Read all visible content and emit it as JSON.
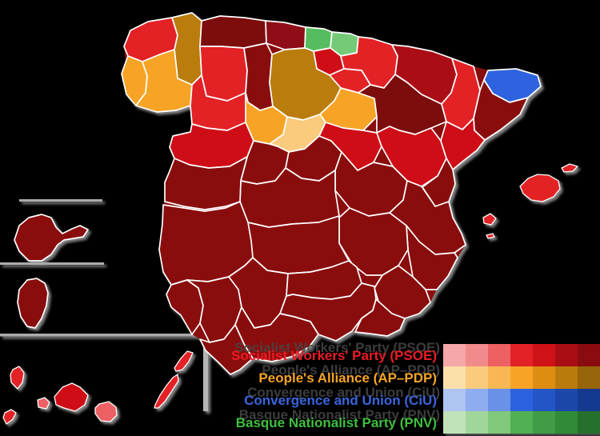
{
  "background_color": "#000000",
  "map": {
    "description": "Spanish general election results by province",
    "border_color": "#ffffff",
    "inset_line_color": "#ababab",
    "provinces": [
      {
        "id": "a-coruna",
        "name": "A Coruña",
        "party": "PSOE",
        "color": "#e32227"
      },
      {
        "id": "lugo",
        "name": "Lugo",
        "party": "AP–PDP",
        "color": "#ba7b0d"
      },
      {
        "id": "pontevedra",
        "name": "Pontevedra",
        "party": "AP–PDP",
        "color": "#f7a426"
      },
      {
        "id": "ourense",
        "name": "Ourense",
        "party": "AP–PDP",
        "color": "#f7a426"
      },
      {
        "id": "asturias",
        "name": "Asturias",
        "party": "PSOE",
        "color": "#7d0b10"
      },
      {
        "id": "cantabria",
        "name": "Cantabria",
        "party": "PSOE",
        "color": "#8f0e13"
      },
      {
        "id": "biscay",
        "name": "Biscay",
        "party": "PNV",
        "color": "#55bd5f"
      },
      {
        "id": "gipuzkoa",
        "name": "Gipuzkoa",
        "party": "PNV",
        "color": "#74ca77"
      },
      {
        "id": "alava",
        "name": "Álava",
        "party": "PSOE",
        "color": "#cf1118"
      },
      {
        "id": "navarre",
        "name": "Navarre",
        "party": "PSOE",
        "color": "#e32227"
      },
      {
        "id": "la-rioja",
        "name": "La Rioja",
        "party": "PSOE",
        "color": "#e32227"
      },
      {
        "id": "leon",
        "name": "León",
        "party": "PSOE",
        "color": "#e32227"
      },
      {
        "id": "palencia",
        "name": "Palencia",
        "party": "PSOE",
        "color": "#8a0c11"
      },
      {
        "id": "burgos",
        "name": "Burgos",
        "party": "AP–PDP",
        "color": "#ba7b0d"
      },
      {
        "id": "soria",
        "name": "Soria",
        "party": "AP–PDP",
        "color": "#f7a426"
      },
      {
        "id": "zamora",
        "name": "Zamora",
        "party": "PSOE",
        "color": "#e32227"
      },
      {
        "id": "valladolid",
        "name": "Valladolid",
        "party": "AP–PDP",
        "color": "#f7a426"
      },
      {
        "id": "segovia",
        "name": "Segovia",
        "party": "AP–PDP",
        "color": "#facb7d"
      },
      {
        "id": "salamanca",
        "name": "Salamanca",
        "party": "PSOE",
        "color": "#cf1118"
      },
      {
        "id": "avila",
        "name": "Ávila",
        "party": "PSOE",
        "color": "#8a0c11"
      },
      {
        "id": "madrid",
        "name": "Madrid",
        "party": "PSOE",
        "color": "#8a0c11"
      },
      {
        "id": "guadalajara",
        "name": "Guadalajara",
        "party": "PSOE",
        "color": "#cf1118"
      },
      {
        "id": "cuenca",
        "name": "Cuenca",
        "party": "PSOE",
        "color": "#8a0c11"
      },
      {
        "id": "toledo",
        "name": "Toledo",
        "party": "PSOE",
        "color": "#8a0c11"
      },
      {
        "id": "ciudad-real",
        "name": "Ciudad Real",
        "party": "PSOE",
        "color": "#8a0c11"
      },
      {
        "id": "albacete",
        "name": "Albacete",
        "party": "PSOE",
        "color": "#8a0c11"
      },
      {
        "id": "caceres",
        "name": "Cáceres",
        "party": "PSOE",
        "color": "#8a0c11"
      },
      {
        "id": "badajoz",
        "name": "Badajoz",
        "party": "PSOE",
        "color": "#8a0c11"
      },
      {
        "id": "huesca",
        "name": "Huesca",
        "party": "PSOE",
        "color": "#aa0e14"
      },
      {
        "id": "zaragoza",
        "name": "Zaragoza",
        "party": "PSOE",
        "color": "#7d0b10"
      },
      {
        "id": "teruel",
        "name": "Teruel",
        "party": "PSOE",
        "color": "#cf1118"
      },
      {
        "id": "lleida",
        "name": "Lleida",
        "party": "PSOE",
        "color": "#e32227"
      },
      {
        "id": "girona",
        "name": "Girona",
        "party": "CiU",
        "color": "#2d62de"
      },
      {
        "id": "barcelona",
        "name": "Barcelona",
        "party": "PSOE",
        "color": "#8a0c11"
      },
      {
        "id": "tarragona",
        "name": "Tarragona",
        "party": "PSOE",
        "color": "#cf1118"
      },
      {
        "id": "castellon",
        "name": "Castellón",
        "party": "PSOE",
        "color": "#8a0c11"
      },
      {
        "id": "valencia",
        "name": "Valencia",
        "party": "PSOE",
        "color": "#8a0c11"
      },
      {
        "id": "alicante",
        "name": "Alicante",
        "party": "PSOE",
        "color": "#8a0c11"
      },
      {
        "id": "murcia",
        "name": "Murcia",
        "party": "PSOE",
        "color": "#8a0c11"
      },
      {
        "id": "huelva",
        "name": "Huelva",
        "party": "PSOE",
        "color": "#8a0c11"
      },
      {
        "id": "sevilla",
        "name": "Seville",
        "party": "PSOE",
        "color": "#8a0c11"
      },
      {
        "id": "cordoba",
        "name": "Córdoba",
        "party": "PSOE",
        "color": "#8a0c11"
      },
      {
        "id": "jaen",
        "name": "Jaén",
        "party": "PSOE",
        "color": "#8a0c11"
      },
      {
        "id": "granada",
        "name": "Granada",
        "party": "PSOE",
        "color": "#8a0c11"
      },
      {
        "id": "malaga",
        "name": "Málaga",
        "party": "PSOE",
        "color": "#8a0c11"
      },
      {
        "id": "almeria",
        "name": "Almería",
        "party": "PSOE",
        "color": "#8a0c11"
      },
      {
        "id": "cadiz",
        "name": "Cádiz",
        "party": "PSOE",
        "color": "#8a0c11"
      },
      {
        "id": "mallorca",
        "name": "Mallorca",
        "party": "PSOE",
        "color": "#e32227"
      },
      {
        "id": "menorca",
        "name": "Menorca",
        "party": "PSOE",
        "color": "#e32227"
      },
      {
        "id": "ibiza",
        "name": "Ibiza",
        "party": "PSOE",
        "color": "#e32227"
      },
      {
        "id": "formentera",
        "name": "Formentera",
        "party": "PSOE",
        "color": "#e32227"
      },
      {
        "id": "la-palma",
        "name": "La Palma",
        "party": "PSOE",
        "color": "#e32227"
      },
      {
        "id": "el-hierro",
        "name": "El Hierro",
        "party": "PSOE",
        "color": "#e32227"
      },
      {
        "id": "la-gomera",
        "name": "La Gomera",
        "party": "PSOE",
        "color": "#ed6163"
      },
      {
        "id": "tenerife",
        "name": "Tenerife",
        "party": "PSOE",
        "color": "#cf1118"
      },
      {
        "id": "gran-canaria",
        "name": "Gran Canaria",
        "party": "PSOE",
        "color": "#ed6163"
      },
      {
        "id": "fuerteventura",
        "name": "Fuerteventura",
        "party": "PSOE",
        "color": "#e32227"
      },
      {
        "id": "lanzarote",
        "name": "Lanzarote",
        "party": "PSOE",
        "color": "#e32227"
      },
      {
        "id": "ceuta",
        "name": "Ceuta",
        "party": "PSOE",
        "color": "#8a0c11"
      },
      {
        "id": "melilla",
        "name": "Melilla",
        "party": "PSOE",
        "color": "#8a0c11"
      }
    ]
  },
  "legend": {
    "entries": [
      {
        "party": "Socialist Workers' Party (PSOE)",
        "text_color": "#ed1c24",
        "shades": [
          "#f5a8a8",
          "#f18b8b",
          "#ed6163",
          "#e32227",
          "#cf1118",
          "#aa0e14",
          "#8a0c11"
        ]
      },
      {
        "party": "People's Alliance (AP–PDP)",
        "text_color": "#f7a426",
        "shades": [
          "#fbdfa9",
          "#facb7d",
          "#f8b752",
          "#f7a426",
          "#dd8e12",
          "#ba7b0d",
          "#97650a"
        ]
      },
      {
        "party": "Convergence and Union (CiU)",
        "text_color": "#3a66de",
        "shades": [
          "#aec4f1",
          "#8fadee",
          "#6991e8",
          "#2d62de",
          "#2255c5",
          "#1b47aa",
          "#143a90"
        ]
      },
      {
        "party": "Basque Nationalist Party (PNV)",
        "text_color": "#3fbf3f",
        "shades": [
          "#c0e3b9",
          "#a1d69b",
          "#80c87c",
          "#50b053",
          "#409d45",
          "#308b39",
          "#26702d"
        ]
      }
    ]
  }
}
